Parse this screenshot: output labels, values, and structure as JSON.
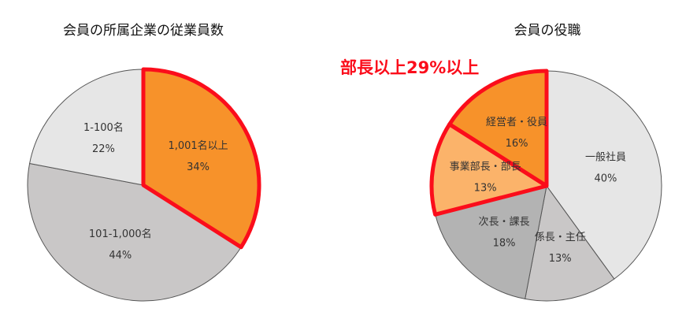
{
  "chart_data": [
    {
      "type": "pie",
      "title": "会員の所属企業の従業員数",
      "start": "top",
      "direction": "clockwise",
      "slices": [
        {
          "label": "1,001名以上",
          "value": 34,
          "display": "34%",
          "color": "#f7922a",
          "highlight": true
        },
        {
          "label": "101-1,000名",
          "value": 44,
          "display": "44%",
          "color": "#c9c7c7",
          "highlight": false
        },
        {
          "label": "1-100名",
          "value": 22,
          "display": "22%",
          "color": "#e6e6e6",
          "highlight": false
        }
      ]
    },
    {
      "type": "pie",
      "title": "会員の役職",
      "start": "top",
      "direction": "clockwise",
      "annotation": "部長以上29%以上",
      "slices": [
        {
          "label": "一般社員",
          "value": 40,
          "display": "40%",
          "color": "#e6e6e6",
          "highlight": false
        },
        {
          "label": "係長・主任",
          "value": 13,
          "display": "13%",
          "color": "#c9c7c7",
          "highlight": false
        },
        {
          "label": "次長・課長",
          "value": 18,
          "display": "18%",
          "color": "#b3b3b3",
          "highlight": false
        },
        {
          "label": "事業部長・部長",
          "value": 13,
          "display": "13%",
          "color": "#fbb36a",
          "highlight": true
        },
        {
          "label": "経営者・役員",
          "value": 16,
          "display": "16%",
          "color": "#f7922a",
          "highlight": true
        }
      ]
    }
  ],
  "colors": {
    "highlight_outline": "#fb0d1b"
  }
}
